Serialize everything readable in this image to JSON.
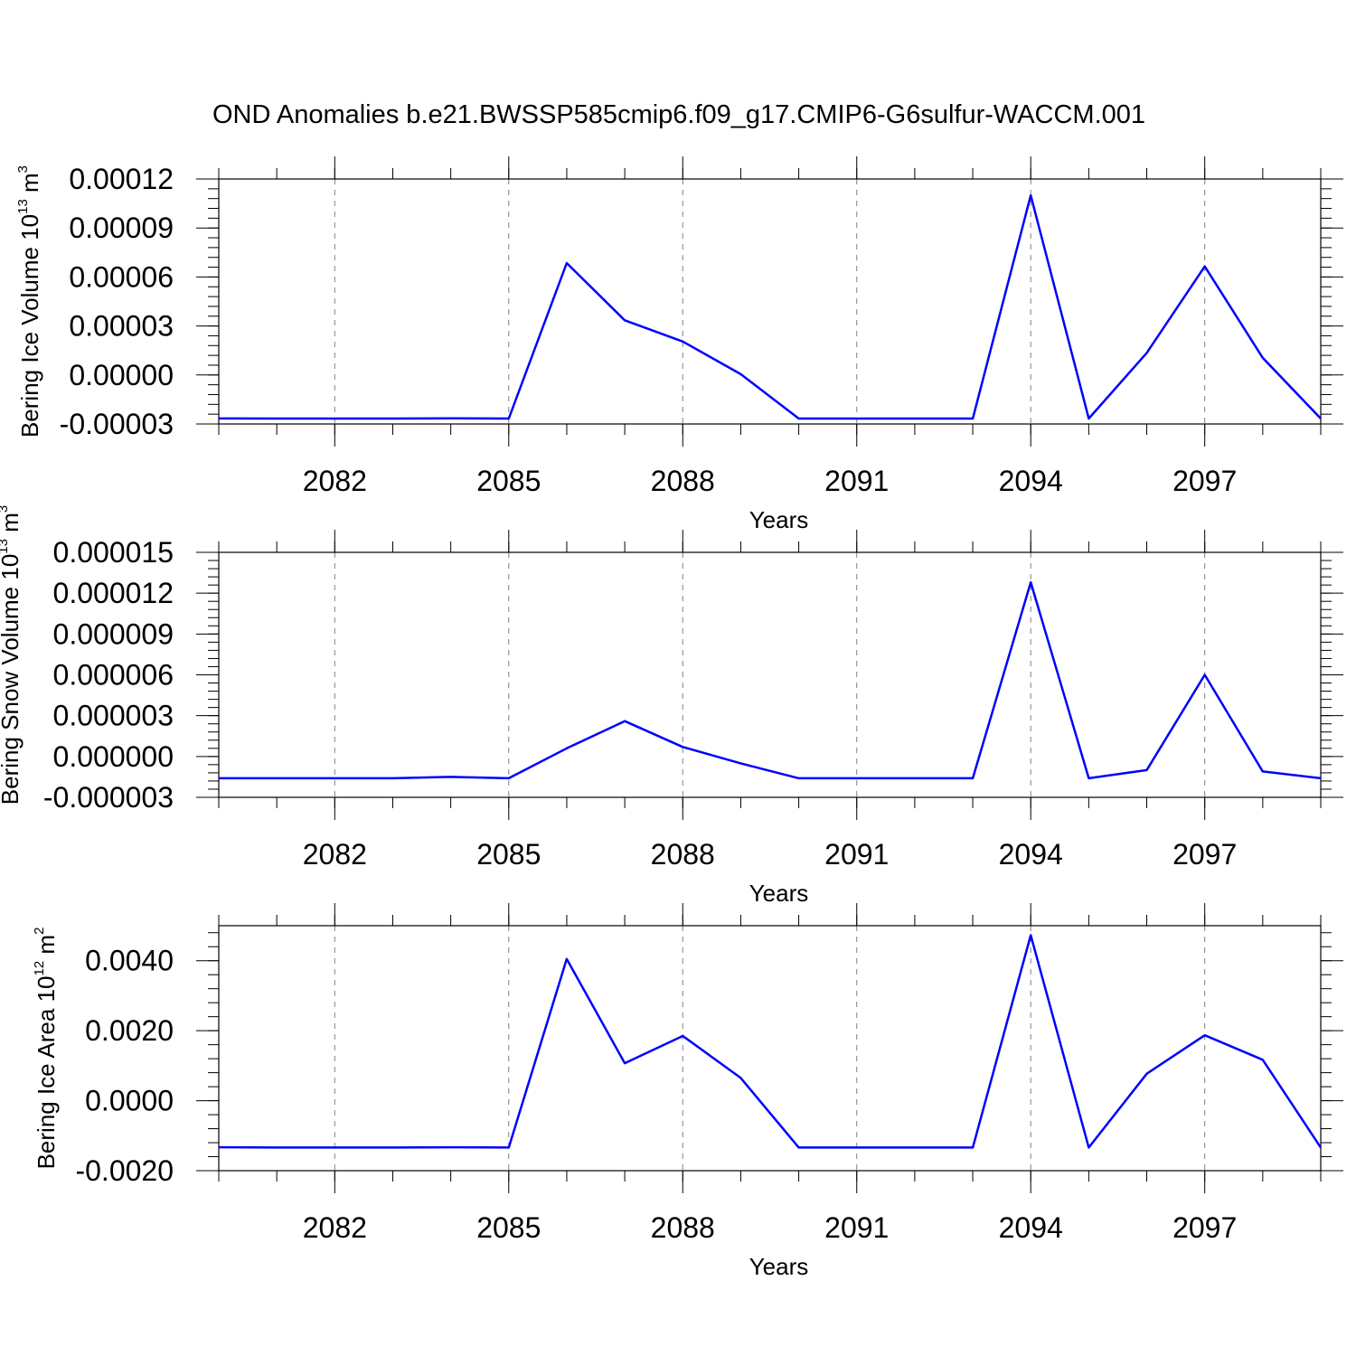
{
  "title": "OND Anomalies b.e21.BWSSP585cmip6.f09_g17.CMIP6-G6sulfur-WACCM.001",
  "line_color": "#0000ff",
  "chart_data": [
    {
      "type": "line",
      "ylabel": {
        "main": "Bering Ice Volume 10",
        "exp": "13",
        "unit": " m",
        "unit_exp": "3"
      },
      "xlabel": "Years",
      "xlim": [
        2080,
        2099
      ],
      "x_ticks": [
        2082,
        2085,
        2088,
        2091,
        2094,
        2097
      ],
      "x_tick_labels": [
        "2082",
        "2085",
        "2088",
        "2091",
        "2094",
        "2097"
      ],
      "ylim": [
        -3e-05,
        0.00012
      ],
      "y_ticks": [
        -3e-05,
        0.0,
        3e-05,
        6e-05,
        9e-05,
        0.00012
      ],
      "y_tick_labels": [
        "-0.00003",
        "0.00000",
        "0.00003",
        "0.00006",
        "0.00009",
        "0.00012"
      ],
      "x": [
        2080,
        2081,
        2082,
        2083,
        2084,
        2085,
        2086,
        2087,
        2088,
        2089,
        2090,
        2091,
        2092,
        2093,
        2094,
        2095,
        2096,
        2097,
        2098,
        2099
      ],
      "y": [
        -2.66e-05,
        -2.67e-05,
        -2.67e-05,
        -2.67e-05,
        -2.65e-05,
        -2.67e-05,
        6.85e-05,
        3.35e-05,
        2.05e-05,
        5e-07,
        -2.67e-05,
        -2.67e-05,
        -2.67e-05,
        -2.67e-05,
        0.00011,
        -2.67e-05,
        1.35e-05,
        6.65e-05,
        1.05e-05,
        -2.67e-05
      ],
      "grid": "vertical dashed at major x ticks"
    },
    {
      "type": "line",
      "ylabel": {
        "main": "Bering Snow Volume 10",
        "exp": "13",
        "unit": " m",
        "unit_exp": "3"
      },
      "xlabel": "Years",
      "xlim": [
        2080,
        2099
      ],
      "x_ticks": [
        2082,
        2085,
        2088,
        2091,
        2094,
        2097
      ],
      "x_tick_labels": [
        "2082",
        "2085",
        "2088",
        "2091",
        "2094",
        "2097"
      ],
      "ylim": [
        -3e-06,
        1.5e-05
      ],
      "y_ticks": [
        -3e-06,
        0.0,
        3e-06,
        6e-06,
        9e-06,
        1.2e-05,
        1.5e-05
      ],
      "y_tick_labels": [
        "-0.000003",
        "0.000000",
        "0.000003",
        "0.000006",
        "0.000009",
        "0.000012",
        "0.000015"
      ],
      "x": [
        2080,
        2081,
        2082,
        2083,
        2084,
        2085,
        2086,
        2087,
        2088,
        2089,
        2090,
        2091,
        2092,
        2093,
        2094,
        2095,
        2096,
        2097,
        2098,
        2099
      ],
      "y": [
        -1.6e-06,
        -1.6e-06,
        -1.6e-06,
        -1.6e-06,
        -1.5e-06,
        -1.6e-06,
        6e-07,
        2.6e-06,
        7e-07,
        -5e-07,
        -1.6e-06,
        -1.6e-06,
        -1.6e-06,
        -1.6e-06,
        1.28e-05,
        -1.6e-06,
        -1e-06,
        6e-06,
        -1.1e-06,
        -1.6e-06
      ],
      "grid": "vertical dashed at major x ticks"
    },
    {
      "type": "line",
      "ylabel": {
        "main": "Bering Ice Area 10",
        "exp": "12",
        "unit": " m",
        "unit_exp": "2"
      },
      "xlabel": "Years",
      "xlim": [
        2080,
        2099
      ],
      "x_ticks": [
        2082,
        2085,
        2088,
        2091,
        2094,
        2097
      ],
      "x_tick_labels": [
        "2082",
        "2085",
        "2088",
        "2091",
        "2094",
        "2097"
      ],
      "ylim": [
        -0.002,
        0.005
      ],
      "y_ticks": [
        -0.002,
        0.0,
        0.002,
        0.004
      ],
      "y_tick_labels": [
        "-0.0020",
        "0.0000",
        "0.0020",
        "0.0040"
      ],
      "x": [
        2080,
        2081,
        2082,
        2083,
        2084,
        2085,
        2086,
        2087,
        2088,
        2089,
        2090,
        2091,
        2092,
        2093,
        2094,
        2095,
        2096,
        2097,
        2098,
        2099
      ],
      "y": [
        -0.00133,
        -0.00134,
        -0.00134,
        -0.00134,
        -0.00133,
        -0.00134,
        0.00405,
        0.00107,
        0.00185,
        0.00065,
        -0.00134,
        -0.00134,
        -0.00134,
        -0.00134,
        0.00473,
        -0.00134,
        0.00077,
        0.00187,
        0.00117,
        -0.00134
      ],
      "grid": "vertical dashed at major x ticks"
    }
  ]
}
